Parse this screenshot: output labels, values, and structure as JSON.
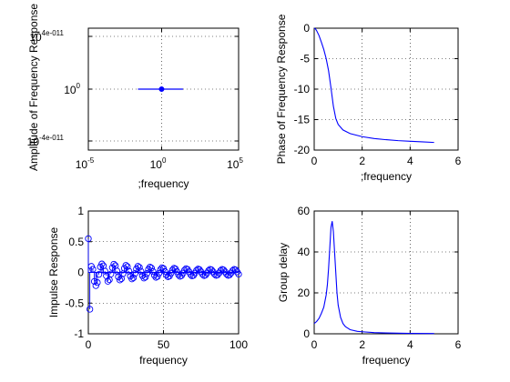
{
  "chart_data": [
    {
      "type": "line",
      "xlabel": ";frequency",
      "ylabel": "Amplitude of Frequency Response",
      "xscale": "log",
      "yscale": "log",
      "xticklabels": [
        {
          "base": "10",
          "exp": "-5"
        },
        {
          "base": "10",
          "exp": "0"
        },
        {
          "base": "10",
          "exp": "5"
        }
      ],
      "yticklabels": [
        {
          "base": "10",
          "exp": "4e-011"
        },
        {
          "base": "10",
          "exp": "0"
        },
        {
          "base": "10",
          "exp": "-4e-011"
        }
      ],
      "series": [
        {
          "x": [
            0.02,
            20
          ],
          "y": [
            1,
            1
          ]
        }
      ],
      "marker_point": {
        "x": 0.75,
        "y": 1
      },
      "grid": true,
      "color": "#0000ff"
    },
    {
      "type": "line",
      "xlabel": ";frequency",
      "ylabel": "Phase of Frequency Response",
      "xlim": [
        0,
        6
      ],
      "ylim": [
        -20,
        0
      ],
      "xticks": [
        0,
        2,
        4,
        6
      ],
      "yticks": [
        0,
        -5,
        -10,
        -15,
        -20
      ],
      "series": [
        {
          "x": [
            0,
            0.05,
            0.1,
            0.2,
            0.3,
            0.4,
            0.5,
            0.6,
            0.7,
            0.8,
            0.9,
            1.0,
            1.2,
            1.5,
            2.0,
            2.5,
            3.0,
            3.5,
            4.0,
            4.5,
            5.0
          ],
          "y": [
            0,
            -0.1,
            -0.4,
            -1.2,
            -2.3,
            -3.5,
            -5.0,
            -7.0,
            -9.8,
            -12.8,
            -14.8,
            -15.8,
            -16.7,
            -17.3,
            -17.8,
            -18.1,
            -18.3,
            -18.45,
            -18.55,
            -18.65,
            -18.75
          ]
        }
      ],
      "grid": true,
      "color": "#0000ff"
    },
    {
      "type": "scatter",
      "xlabel": "frequency",
      "ylabel": "Impulse Response",
      "xlim": [
        0,
        100
      ],
      "ylim": [
        -1,
        1
      ],
      "xticks": [
        0,
        50,
        100
      ],
      "yticks": [
        1,
        0.5,
        0,
        -0.5,
        -1
      ],
      "amplitude": [
        0.55,
        0.6,
        0.12,
        0.28,
        0.26,
        0.22,
        0.2,
        0.18,
        0.16,
        0.14,
        0.13,
        0.12,
        0.1
      ],
      "envelope_tail": 0.05,
      "period_samples": 8,
      "samples": 101,
      "grid": true,
      "color": "#0000ff"
    },
    {
      "type": "line",
      "xlabel": "frequency",
      "ylabel": "Group delay",
      "xlim": [
        0,
        6
      ],
      "ylim": [
        0,
        60
      ],
      "xticks": [
        0,
        2,
        4,
        6
      ],
      "yticks": [
        0,
        20,
        40,
        60
      ],
      "series": [
        {
          "x": [
            0,
            0.1,
            0.2,
            0.3,
            0.4,
            0.5,
            0.55,
            0.6,
            0.65,
            0.7,
            0.75,
            0.8,
            0.85,
            0.9,
            0.95,
            1.0,
            1.1,
            1.2,
            1.3,
            1.5,
            1.8,
            2.0,
            2.5,
            3.0,
            4.0,
            5.0
          ],
          "y": [
            5,
            6,
            7.5,
            10,
            13,
            19,
            24,
            32,
            42,
            52,
            55,
            50,
            40,
            30,
            20,
            14,
            8,
            5,
            3.5,
            2,
            1.2,
            1,
            0.6,
            0.4,
            0.2,
            0.15
          ]
        }
      ],
      "grid": true,
      "color": "#0000ff"
    }
  ]
}
